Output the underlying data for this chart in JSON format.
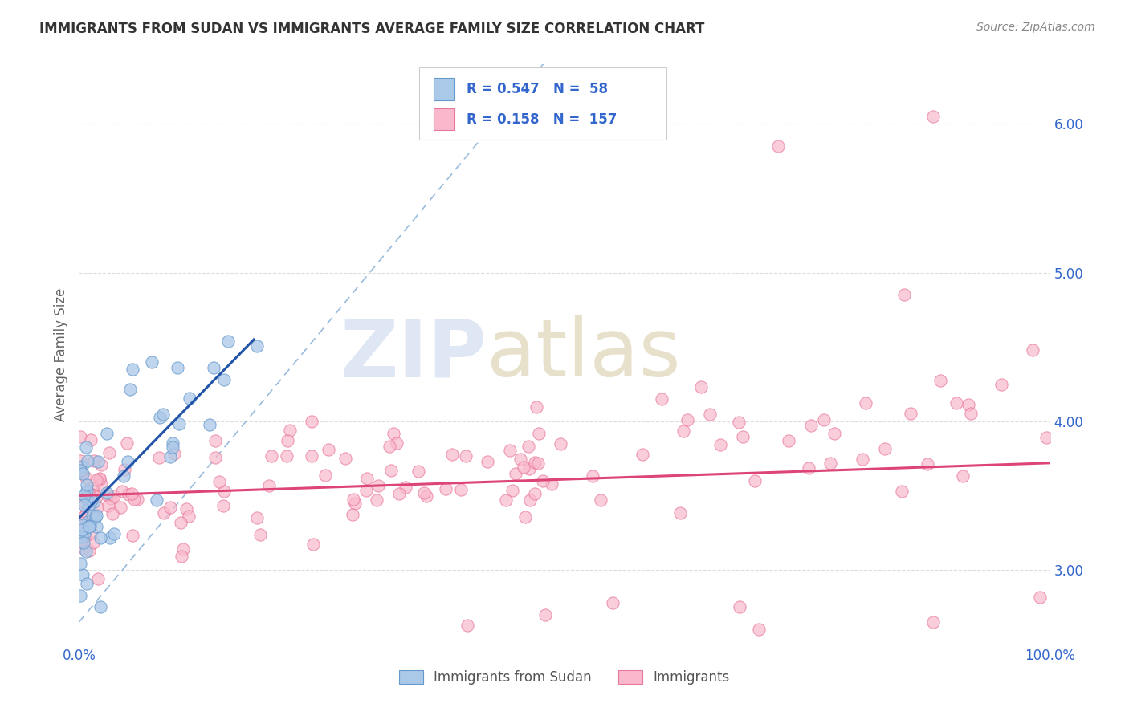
{
  "title": "IMMIGRANTS FROM SUDAN VS IMMIGRANTS AVERAGE FAMILY SIZE CORRELATION CHART",
  "source": "Source: ZipAtlas.com",
  "ylabel": "Average Family Size",
  "xlim": [
    0.0,
    100.0
  ],
  "ylim": [
    2.5,
    6.4
  ],
  "yticks": [
    3.0,
    4.0,
    5.0,
    6.0
  ],
  "series1_color": "#aac8e8",
  "series1_edge": "#6699cc",
  "series2_color": "#f9b8cb",
  "series2_edge": "#e87799",
  "trend1_color": "#2255aa",
  "trend2_color": "#dd4477",
  "ref_line_color": "#99bbdd",
  "legend_R1": "0.547",
  "legend_N1": "58",
  "legend_R2": "0.158",
  "legend_N2": "157",
  "legend_label1": "Immigrants from Sudan",
  "legend_label2": "Immigrants",
  "label_color": "#3366cc",
  "background_color": "#ffffff",
  "title_color": "#333333",
  "source_color": "#888888",
  "ylabel_color": "#666666",
  "grid_color": "#dddddd",
  "tick_color": "#3366cc",
  "watermark_zip_color": "#ccd8ee",
  "watermark_atlas_color": "#d8cca8"
}
